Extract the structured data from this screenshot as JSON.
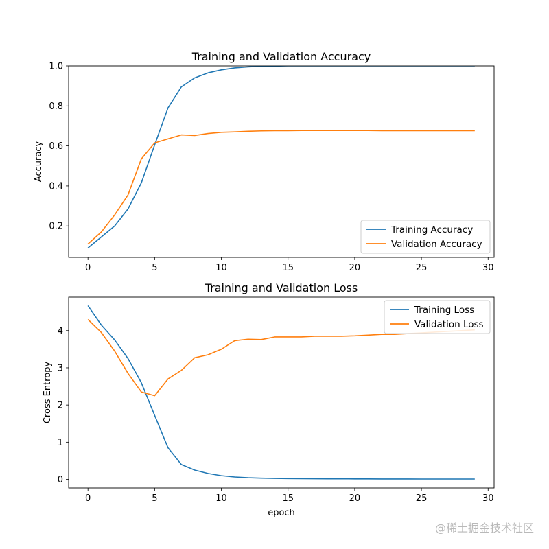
{
  "chart_data": [
    {
      "type": "line",
      "title": "Training and Validation Accuracy",
      "xlabel": "",
      "ylabel": "Accuracy",
      "xlim": [
        -1.45,
        30.45
      ],
      "ylim": [
        0.043,
        1.0
      ],
      "xticks": [
        0,
        5,
        10,
        15,
        20,
        25,
        30
      ],
      "yticks": [
        0.2,
        0.4,
        0.6,
        0.8,
        1.0
      ],
      "ytick_labels": [
        "0.2",
        "0.4",
        "0.6",
        "0.8",
        "1.0"
      ],
      "legend_position": "lower-right",
      "x": [
        0,
        1,
        2,
        3,
        4,
        5,
        6,
        7,
        8,
        9,
        10,
        11,
        12,
        13,
        14,
        15,
        16,
        17,
        18,
        19,
        20,
        21,
        22,
        23,
        24,
        25,
        26,
        27,
        28,
        29
      ],
      "series": [
        {
          "name": "Training Accuracy",
          "color": "#1f77b4",
          "values": [
            0.09,
            0.145,
            0.2,
            0.285,
            0.415,
            0.605,
            0.79,
            0.895,
            0.94,
            0.965,
            0.98,
            0.99,
            0.995,
            0.998,
            0.999,
            1.0,
            1.0,
            1.0,
            1.0,
            1.0,
            1.0,
            1.0,
            1.0,
            1.0,
            1.0,
            1.0,
            1.0,
            1.0,
            1.0,
            1.0
          ]
        },
        {
          "name": "Validation Accuracy",
          "color": "#ff7f0e",
          "values": [
            0.11,
            0.17,
            0.255,
            0.355,
            0.535,
            0.615,
            0.635,
            0.655,
            0.652,
            0.662,
            0.668,
            0.67,
            0.673,
            0.675,
            0.676,
            0.676,
            0.677,
            0.677,
            0.677,
            0.677,
            0.677,
            0.677,
            0.676,
            0.676,
            0.676,
            0.676,
            0.676,
            0.676,
            0.676,
            0.676
          ]
        }
      ]
    },
    {
      "type": "line",
      "title": "Training and Validation Loss",
      "xlabel": "epoch",
      "ylabel": "Cross Entropy",
      "xlim": [
        -1.45,
        30.45
      ],
      "ylim": [
        -0.23,
        4.9
      ],
      "xticks": [
        0,
        5,
        10,
        15,
        20,
        25,
        30
      ],
      "yticks": [
        0,
        1,
        2,
        3,
        4
      ],
      "ytick_labels": [
        "0",
        "1",
        "2",
        "3",
        "4"
      ],
      "legend_position": "upper-right",
      "x": [
        0,
        1,
        2,
        3,
        4,
        5,
        6,
        7,
        8,
        9,
        10,
        11,
        12,
        13,
        14,
        15,
        16,
        17,
        18,
        19,
        20,
        21,
        22,
        23,
        24,
        25,
        26,
        27,
        28,
        29
      ],
      "series": [
        {
          "name": "Training Loss",
          "color": "#1f77b4",
          "values": [
            4.67,
            4.15,
            3.75,
            3.25,
            2.6,
            1.72,
            0.85,
            0.4,
            0.25,
            0.16,
            0.1,
            0.065,
            0.045,
            0.035,
            0.028,
            0.023,
            0.02,
            0.018,
            0.016,
            0.015,
            0.014,
            0.013,
            0.012,
            0.011,
            0.011,
            0.01,
            0.01,
            0.01,
            0.01,
            0.01
          ]
        },
        {
          "name": "Validation Loss",
          "color": "#ff7f0e",
          "values": [
            4.3,
            3.95,
            3.45,
            2.85,
            2.35,
            2.25,
            2.7,
            2.93,
            3.27,
            3.35,
            3.5,
            3.73,
            3.77,
            3.76,
            3.83,
            3.83,
            3.83,
            3.85,
            3.85,
            3.85,
            3.86,
            3.88,
            3.9,
            3.9,
            3.92,
            3.94,
            3.96,
            3.98,
            4.0,
            4.02
          ]
        }
      ]
    }
  ],
  "watermark": "@稀土掘金技术社区"
}
